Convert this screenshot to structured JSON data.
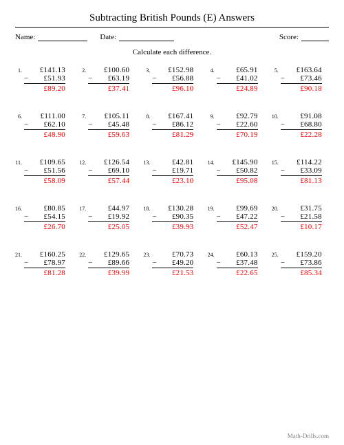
{
  "title": "Subtracting British Pounds (E) Answers",
  "meta": {
    "name_label": "Name:",
    "date_label": "Date:",
    "score_label": "Score:"
  },
  "instruction": "Calculate each difference.",
  "footer": "Math-Drills.com",
  "currency": "£",
  "minus": "−",
  "colors": {
    "answer": "#ff0000",
    "text": "#000000",
    "footer": "#808080",
    "bg": "#ffffff"
  },
  "problems": [
    {
      "n": "1.",
      "a": "£141.13",
      "b": "£51.93",
      "r": "£89.20"
    },
    {
      "n": "2.",
      "a": "£100.60",
      "b": "£63.19",
      "r": "£37.41"
    },
    {
      "n": "3.",
      "a": "£152.98",
      "b": "£56.88",
      "r": "£96.10"
    },
    {
      "n": "4.",
      "a": "£65.91",
      "b": "£41.02",
      "r": "£24.89"
    },
    {
      "n": "5.",
      "a": "£163.64",
      "b": "£73.46",
      "r": "£90.18"
    },
    {
      "n": "6.",
      "a": "£111.00",
      "b": "£62.10",
      "r": "£48.90"
    },
    {
      "n": "7.",
      "a": "£105.11",
      "b": "£45.48",
      "r": "£59.63"
    },
    {
      "n": "8.",
      "a": "£167.41",
      "b": "£86.12",
      "r": "£81.29"
    },
    {
      "n": "9.",
      "a": "£92.79",
      "b": "£22.60",
      "r": "£70.19"
    },
    {
      "n": "10.",
      "a": "£91.08",
      "b": "£68.80",
      "r": "£22.28"
    },
    {
      "n": "11.",
      "a": "£109.65",
      "b": "£51.56",
      "r": "£58.09"
    },
    {
      "n": "12.",
      "a": "£126.54",
      "b": "£69.10",
      "r": "£57.44"
    },
    {
      "n": "13.",
      "a": "£42.81",
      "b": "£19.71",
      "r": "£23.10"
    },
    {
      "n": "14.",
      "a": "£145.90",
      "b": "£50.82",
      "r": "£95.08"
    },
    {
      "n": "15.",
      "a": "£114.22",
      "b": "£33.09",
      "r": "£81.13"
    },
    {
      "n": "16.",
      "a": "£80.85",
      "b": "£54.15",
      "r": "£26.70"
    },
    {
      "n": "17.",
      "a": "£44.97",
      "b": "£19.92",
      "r": "£25.05"
    },
    {
      "n": "18.",
      "a": "£130.28",
      "b": "£90.35",
      "r": "£39.93"
    },
    {
      "n": "19.",
      "a": "£99.69",
      "b": "£47.22",
      "r": "£52.47"
    },
    {
      "n": "20.",
      "a": "£31.75",
      "b": "£21.58",
      "r": "£10.17"
    },
    {
      "n": "21.",
      "a": "£160.25",
      "b": "£78.97",
      "r": "£81.28"
    },
    {
      "n": "22.",
      "a": "£129.65",
      "b": "£89.66",
      "r": "£39.99"
    },
    {
      "n": "23.",
      "a": "£70.73",
      "b": "£49.20",
      "r": "£21.53"
    },
    {
      "n": "24.",
      "a": "£60.13",
      "b": "£37.48",
      "r": "£22.65"
    },
    {
      "n": "25.",
      "a": "£159.20",
      "b": "£73.86",
      "r": "£85.34"
    }
  ]
}
